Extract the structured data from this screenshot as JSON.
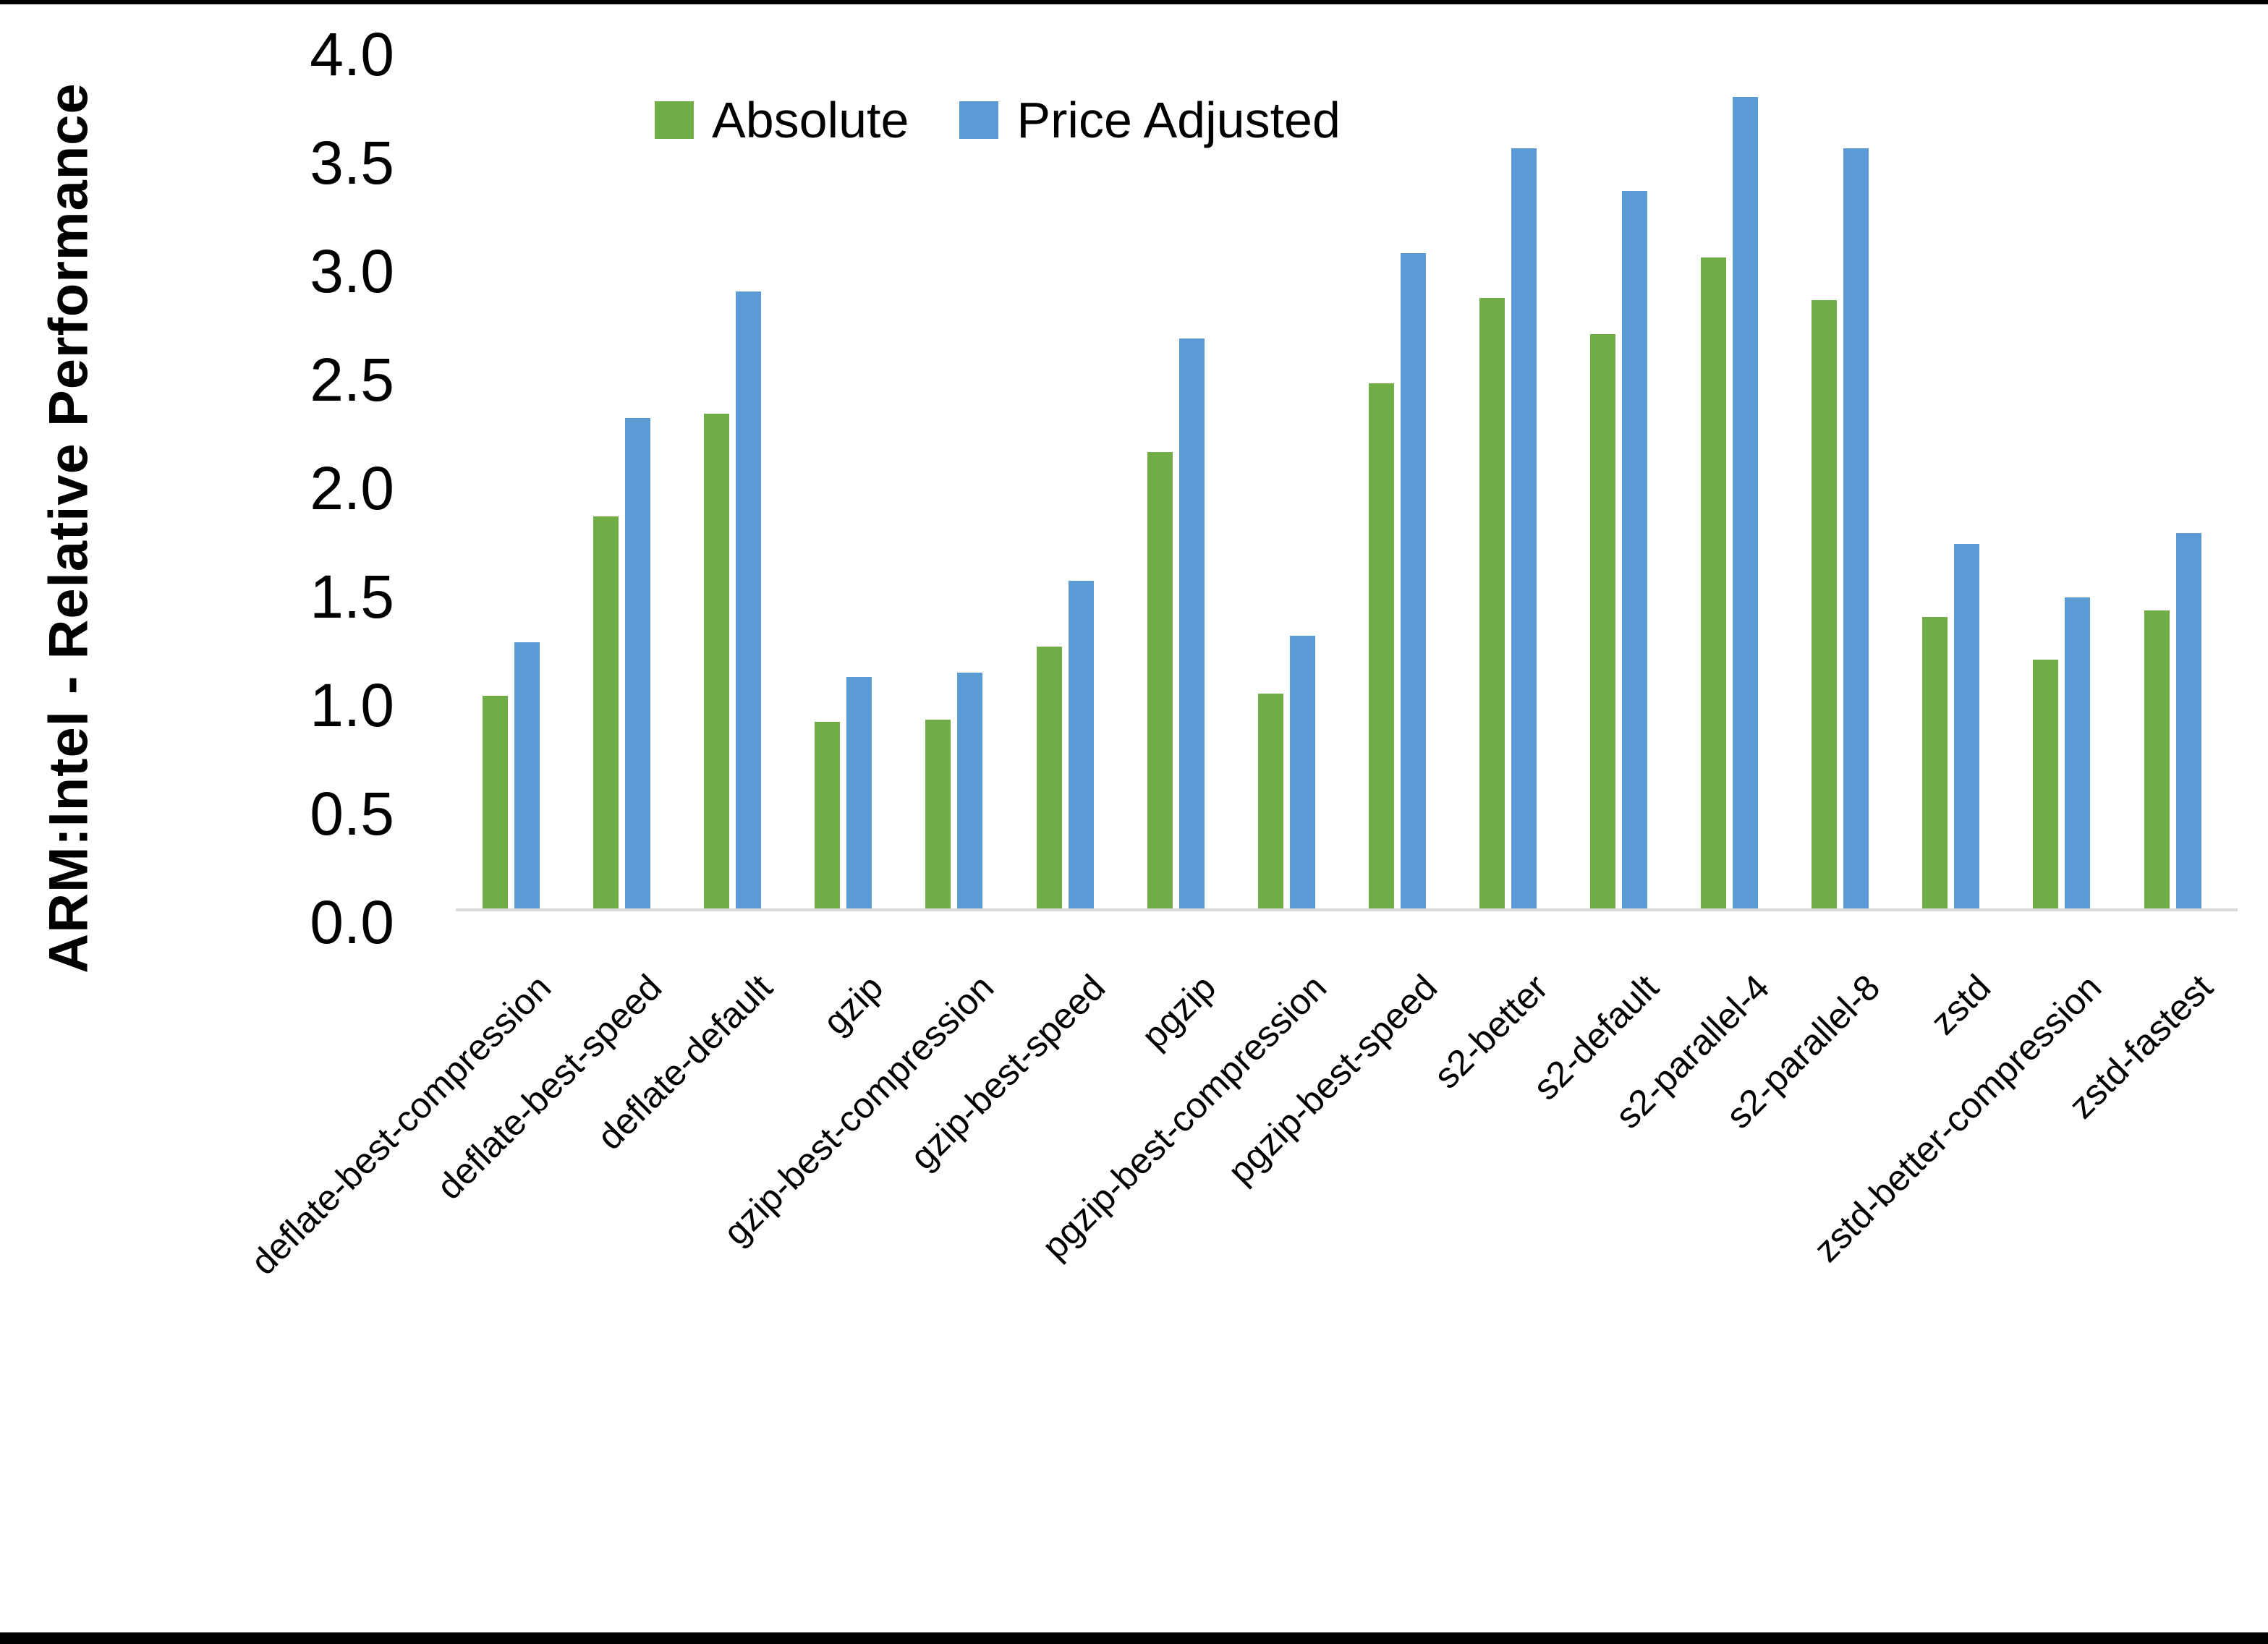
{
  "page": {
    "background": "#ffffff",
    "frame_color": "#000000",
    "axis_line_color": "#d9d9d9",
    "text_color": "#000000"
  },
  "chart_data": {
    "type": "bar",
    "title": "",
    "xlabel": "",
    "ylabel": "ARM:Intel - Relative Performance",
    "ylim": [
      0.0,
      4.0
    ],
    "ytick_step": 0.5,
    "ytick_labels": [
      "4.0",
      "3.5",
      "3.0",
      "2.5",
      "2.0",
      "1.5",
      "1.0",
      "0.5",
      "0.0"
    ],
    "grid": false,
    "legend_position": "top-center",
    "categories": [
      "deflate-best-compression",
      "deflate-best-speed",
      "deflate-default",
      "gzip",
      "gzip-best-compression",
      "gzip-best-speed",
      "pgzip",
      "pgzip-best-compression",
      "pgzip-best-speed",
      "s2-better",
      "s2-default",
      "s2-parallel-4",
      "s2-parallel-8",
      "zstd",
      "zstd-better-compression",
      "zstd-fastest"
    ],
    "series": [
      {
        "name": "Absolute",
        "color": "#70AD47",
        "values": [
          1.0,
          1.84,
          2.32,
          0.88,
          0.89,
          1.23,
          2.14,
          1.01,
          2.46,
          2.86,
          2.69,
          3.05,
          2.85,
          1.37,
          1.17,
          1.4
        ]
      },
      {
        "name": "Price Adjusted",
        "color": "#5B9BD5",
        "values": [
          1.25,
          2.3,
          2.89,
          1.09,
          1.11,
          1.54,
          2.67,
          1.28,
          3.07,
          3.56,
          3.36,
          3.8,
          3.56,
          1.71,
          1.46,
          1.76
        ]
      }
    ]
  }
}
